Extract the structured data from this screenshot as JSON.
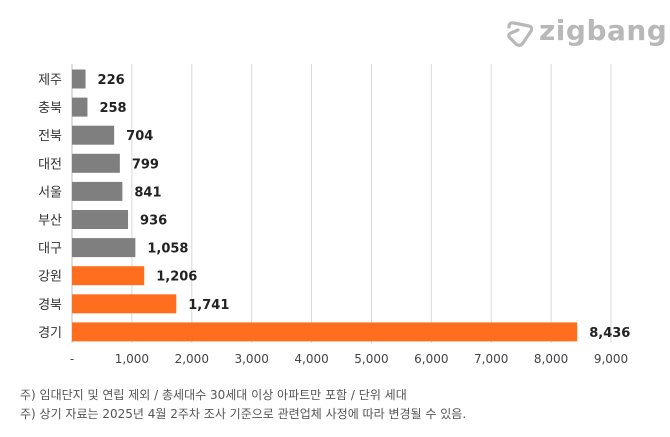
{
  "brand": {
    "logo_text": "zigbang",
    "logo_color": "#b8b8b8"
  },
  "chart_data": {
    "type": "bar",
    "orientation": "horizontal",
    "categories": [
      "제주",
      "충북",
      "전북",
      "대전",
      "서울",
      "부산",
      "대구",
      "강원",
      "경북",
      "경기"
    ],
    "values": [
      226,
      258,
      704,
      799,
      841,
      936,
      1058,
      1206,
      1741,
      8436
    ],
    "value_labels": [
      "226",
      "258",
      "704",
      "799",
      "841",
      "936",
      "1,058",
      "1,206",
      "1,741",
      "8,436"
    ],
    "bar_colors": [
      "#7f7f7f",
      "#7f7f7f",
      "#7f7f7f",
      "#7f7f7f",
      "#7f7f7f",
      "#7f7f7f",
      "#7f7f7f",
      "#ff6d1f",
      "#ff6d1f",
      "#ff6d1f"
    ],
    "xlim": [
      0,
      9000
    ],
    "x_ticks": [
      0,
      1000,
      2000,
      3000,
      4000,
      5000,
      6000,
      7000,
      8000,
      9000
    ],
    "x_tick_labels": [
      "-",
      "1,000",
      "2,000",
      "3,000",
      "4,000",
      "5,000",
      "6,000",
      "7,000",
      "8,000",
      "9,000"
    ],
    "grid": true,
    "title": "",
    "xlabel": "",
    "ylabel": ""
  },
  "footnotes": [
    "주) 임대단지 및 연립 제외 / 총세대수 30세대 이상 아파트만 포함 / 단위 세대",
    "주) 상기 자료는 2025년 4월 2주차 조사 기준으로 관련업체 사정에 따라 변경될 수 있음."
  ]
}
